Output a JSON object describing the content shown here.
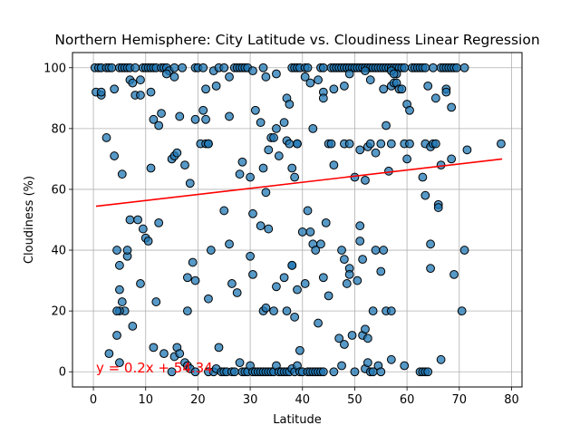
{
  "chart_data": {
    "type": "scatter",
    "title": "Northern Hemisphere: City Latitude vs. Cloudiness Linear Regression",
    "xlabel": "Latitude",
    "ylabel": "Cloudiness (%)",
    "xlim": [
      -4,
      82
    ],
    "ylim": [
      -5,
      105
    ],
    "xticks": [
      0,
      10,
      20,
      30,
      40,
      50,
      60,
      70,
      80
    ],
    "yticks": [
      0,
      20,
      40,
      60,
      80,
      100
    ],
    "grid": true,
    "point_color": "#1f77b4",
    "point_edge_color": "#000000",
    "line_color": "#ff0000",
    "regression": {
      "slope": 0.2,
      "intercept": 54.34,
      "x_range": [
        0.5,
        78.2
      ]
    },
    "annotation": {
      "text": "y = 0.2x + 54.34",
      "x": 0.5,
      "y": 0,
      "color": "#ff0000"
    },
    "points": [
      [
        0.3,
        100
      ],
      [
        1.0,
        100
      ],
      [
        1.5,
        100
      ],
      [
        2.5,
        100
      ],
      [
        3.0,
        100
      ],
      [
        3.5,
        100
      ],
      [
        5.0,
        100
      ],
      [
        5.5,
        100
      ],
      [
        6.0,
        100
      ],
      [
        6.5,
        100
      ],
      [
        7.0,
        100
      ],
      [
        8.0,
        100
      ],
      [
        9.5,
        100
      ],
      [
        10.0,
        100
      ],
      [
        10.5,
        100
      ],
      [
        11.0,
        100
      ],
      [
        11.5,
        100
      ],
      [
        12.0,
        100
      ],
      [
        13.0,
        100
      ],
      [
        13.5,
        100
      ],
      [
        14.0,
        100
      ],
      [
        14.5,
        99
      ],
      [
        15.5,
        100
      ],
      [
        17.0,
        100
      ],
      [
        19.5,
        100
      ],
      [
        20.0,
        100
      ],
      [
        21.0,
        100
      ],
      [
        23.0,
        99
      ],
      [
        24.0,
        100
      ],
      [
        25.0,
        100
      ],
      [
        27.0,
        100
      ],
      [
        27.5,
        100
      ],
      [
        28.0,
        100
      ],
      [
        28.5,
        100
      ],
      [
        29.0,
        100
      ],
      [
        29.5,
        100
      ],
      [
        30.5,
        99
      ],
      [
        32.5,
        100
      ],
      [
        35.0,
        98
      ],
      [
        38.0,
        100
      ],
      [
        38.5,
        100
      ],
      [
        39.0,
        100
      ],
      [
        39.5,
        100
      ],
      [
        40.5,
        100
      ],
      [
        41.0,
        100
      ],
      [
        43.5,
        100
      ],
      [
        44.0,
        100
      ],
      [
        45.5,
        100
      ],
      [
        46.0,
        100
      ],
      [
        46.5,
        100
      ],
      [
        47.0,
        100
      ],
      [
        47.5,
        100
      ],
      [
        48.0,
        100
      ],
      [
        48.5,
        100
      ],
      [
        49.0,
        100
      ],
      [
        49.5,
        100
      ],
      [
        50.0,
        100
      ],
      [
        50.5,
        100
      ],
      [
        51.0,
        100
      ],
      [
        51.5,
        100
      ],
      [
        52.0,
        100
      ],
      [
        52.5,
        100
      ],
      [
        53.0,
        100
      ],
      [
        53.5,
        100
      ],
      [
        54.0,
        100
      ],
      [
        54.5,
        100
      ],
      [
        55.0,
        100
      ],
      [
        55.5,
        100
      ],
      [
        56.0,
        100
      ],
      [
        56.5,
        100
      ],
      [
        57.0,
        100
      ],
      [
        57.5,
        100
      ],
      [
        58.0,
        100
      ],
      [
        58.5,
        100
      ],
      [
        59.0,
        100
      ],
      [
        59.5,
        100
      ],
      [
        61.0,
        100
      ],
      [
        61.5,
        100
      ],
      [
        62.0,
        100
      ],
      [
        62.5,
        100
      ],
      [
        63.0,
        100
      ],
      [
        63.5,
        100
      ],
      [
        65.0,
        100
      ],
      [
        66.5,
        100
      ],
      [
        67.0,
        100
      ],
      [
        67.5,
        100
      ],
      [
        68.0,
        100
      ],
      [
        68.5,
        100
      ],
      [
        69.0,
        100
      ],
      [
        69.5,
        100
      ],
      [
        71.0,
        100
      ],
      [
        0.5,
        92
      ],
      [
        1.5,
        91
      ],
      [
        1.5,
        92
      ],
      [
        4.0,
        93
      ],
      [
        7.0,
        96
      ],
      [
        7.5,
        95
      ],
      [
        8.0,
        91
      ],
      [
        9.0,
        91
      ],
      [
        9.0,
        96
      ],
      [
        11.0,
        92
      ],
      [
        14.0,
        98
      ],
      [
        15.5,
        97
      ],
      [
        21.5,
        93
      ],
      [
        23.5,
        94
      ],
      [
        26.0,
        97
      ],
      [
        33.0,
        97
      ],
      [
        37.0,
        90
      ],
      [
        37.5,
        88
      ],
      [
        40.5,
        97
      ],
      [
        41.5,
        95
      ],
      [
        43.0,
        96
      ],
      [
        44.0,
        92
      ],
      [
        44.0,
        90
      ],
      [
        46.0,
        93
      ],
      [
        48.0,
        94
      ],
      [
        49.0,
        98
      ],
      [
        52.0,
        99
      ],
      [
        53.0,
        96
      ],
      [
        55.5,
        93
      ],
      [
        57.0,
        94
      ],
      [
        57.5,
        95
      ],
      [
        58.0,
        95
      ],
      [
        58.5,
        93
      ],
      [
        59.0,
        93
      ],
      [
        60.0,
        88
      ],
      [
        60.5,
        86
      ],
      [
        64.0,
        94
      ],
      [
        65.5,
        90
      ],
      [
        67.5,
        93
      ],
      [
        67.5,
        92
      ],
      [
        68.5,
        87
      ],
      [
        58.0,
        98
      ],
      [
        57.0,
        99
      ],
      [
        57.5,
        98
      ],
      [
        2.5,
        77
      ],
      [
        4.0,
        71
      ],
      [
        5.5,
        65
      ],
      [
        11.0,
        67
      ],
      [
        11.5,
        83
      ],
      [
        12.5,
        81
      ],
      [
        13.0,
        85
      ],
      [
        15.0,
        70
      ],
      [
        15.5,
        71
      ],
      [
        16.0,
        72
      ],
      [
        16.5,
        84
      ],
      [
        17.5,
        68
      ],
      [
        18.5,
        62
      ],
      [
        19.5,
        83
      ],
      [
        20.5,
        75
      ],
      [
        21.0,
        86
      ],
      [
        21.5,
        75
      ],
      [
        21.5,
        83
      ],
      [
        22.0,
        75
      ],
      [
        22.0,
        75
      ],
      [
        26.0,
        84
      ],
      [
        28.0,
        65
      ],
      [
        28.5,
        69
      ],
      [
        30.0,
        64
      ],
      [
        31.0,
        86
      ],
      [
        32.0,
        82
      ],
      [
        32.5,
        67
      ],
      [
        33.5,
        73
      ],
      [
        34.0,
        77
      ],
      [
        34.5,
        77
      ],
      [
        35.0,
        80
      ],
      [
        35.5,
        71
      ],
      [
        36.5,
        82
      ],
      [
        37.0,
        76
      ],
      [
        37.5,
        75
      ],
      [
        38.0,
        67
      ],
      [
        38.5,
        64
      ],
      [
        39.0,
        75
      ],
      [
        39.0,
        75
      ],
      [
        42.0,
        80
      ],
      [
        45.0,
        75
      ],
      [
        45.5,
        75
      ],
      [
        46.0,
        68
      ],
      [
        48.0,
        75
      ],
      [
        49.0,
        75
      ],
      [
        50.0,
        64
      ],
      [
        51.0,
        73
      ],
      [
        52.0,
        63
      ],
      [
        52.5,
        74
      ],
      [
        53.0,
        75
      ],
      [
        54.0,
        72
      ],
      [
        55.0,
        75
      ],
      [
        56.0,
        81
      ],
      [
        56.5,
        66
      ],
      [
        57.0,
        75
      ],
      [
        59.5,
        75
      ],
      [
        60.0,
        70
      ],
      [
        60.5,
        75
      ],
      [
        63.0,
        64
      ],
      [
        63.5,
        75
      ],
      [
        64.5,
        74
      ],
      [
        65.0,
        75
      ],
      [
        65.5,
        75
      ],
      [
        66.5,
        68
      ],
      [
        68.5,
        70
      ],
      [
        71.5,
        73
      ],
      [
        78.0,
        75
      ],
      [
        7.0,
        50
      ],
      [
        8.5,
        50
      ],
      [
        9.5,
        47
      ],
      [
        10.0,
        44
      ],
      [
        10.5,
        43
      ],
      [
        12.0,
        23
      ],
      [
        12.5,
        49
      ],
      [
        6.5,
        38
      ],
      [
        6.5,
        40
      ],
      [
        5.0,
        35
      ],
      [
        4.5,
        40
      ],
      [
        5.0,
        27
      ],
      [
        5.5,
        23
      ],
      [
        6.0,
        20
      ],
      [
        5.0,
        20
      ],
      [
        4.5,
        20
      ],
      [
        4.5,
        12
      ],
      [
        7.5,
        15
      ],
      [
        9.0,
        29
      ],
      [
        19.0,
        36
      ],
      [
        19.5,
        30
      ],
      [
        18.0,
        31
      ],
      [
        18.0,
        20
      ],
      [
        22.0,
        24
      ],
      [
        22.5,
        40
      ],
      [
        25.0,
        53
      ],
      [
        26.0,
        42
      ],
      [
        26.5,
        29
      ],
      [
        27.5,
        26
      ],
      [
        30.0,
        38
      ],
      [
        30.5,
        52
      ],
      [
        30.5,
        32
      ],
      [
        32.0,
        48
      ],
      [
        32.5,
        20
      ],
      [
        33.0,
        21
      ],
      [
        33.0,
        59
      ],
      [
        33.5,
        47
      ],
      [
        34.5,
        20
      ],
      [
        35.0,
        28
      ],
      [
        36.5,
        31
      ],
      [
        37.0,
        20
      ],
      [
        38.0,
        35
      ],
      [
        38.0,
        35
      ],
      [
        38.5,
        18
      ],
      [
        39.0,
        27
      ],
      [
        39.5,
        7
      ],
      [
        40.0,
        46
      ],
      [
        40.5,
        29
      ],
      [
        41.0,
        53
      ],
      [
        41.5,
        46
      ],
      [
        42.0,
        42
      ],
      [
        42.5,
        40
      ],
      [
        43.0,
        16
      ],
      [
        43.5,
        42
      ],
      [
        44.0,
        31
      ],
      [
        44.5,
        49
      ],
      [
        45.0,
        25
      ],
      [
        47.0,
        11
      ],
      [
        47.5,
        40
      ],
      [
        48.0,
        37
      ],
      [
        48.0,
        9
      ],
      [
        48.5,
        29
      ],
      [
        49.0,
        34
      ],
      [
        49.0,
        32
      ],
      [
        49.5,
        12
      ],
      [
        50.5,
        30
      ],
      [
        51.0,
        43
      ],
      [
        51.0,
        48
      ],
      [
        51.5,
        37
      ],
      [
        51.5,
        12
      ],
      [
        52.0,
        14
      ],
      [
        52.5,
        11
      ],
      [
        53.5,
        20
      ],
      [
        54.0,
        40
      ],
      [
        55.0,
        33
      ],
      [
        55.5,
        40
      ],
      [
        56.0,
        20
      ],
      [
        57.0,
        20
      ],
      [
        63.5,
        58
      ],
      [
        64.5,
        42
      ],
      [
        64.5,
        34
      ],
      [
        66.0,
        55
      ],
      [
        66.0,
        54
      ],
      [
        69.0,
        32
      ],
      [
        70.5,
        20
      ],
      [
        71.0,
        40
      ],
      [
        3.0,
        6
      ],
      [
        5.0,
        3
      ],
      [
        11.5,
        8
      ],
      [
        13.5,
        6
      ],
      [
        15.0,
        0
      ],
      [
        15.5,
        5
      ],
      [
        16.0,
        8
      ],
      [
        16.5,
        6
      ],
      [
        17.5,
        3
      ],
      [
        18.0,
        2
      ],
      [
        18.5,
        1
      ],
      [
        19.5,
        0
      ],
      [
        22.0,
        0
      ],
      [
        23.0,
        0
      ],
      [
        23.5,
        1
      ],
      [
        24.0,
        8
      ],
      [
        24.5,
        0
      ],
      [
        25.0,
        0
      ],
      [
        25.5,
        0
      ],
      [
        26.5,
        0
      ],
      [
        27.0,
        0
      ],
      [
        28.0,
        3
      ],
      [
        28.5,
        0
      ],
      [
        29.0,
        0
      ],
      [
        29.5,
        0
      ],
      [
        30.0,
        2
      ],
      [
        30.5,
        0
      ],
      [
        31.0,
        0
      ],
      [
        31.5,
        0
      ],
      [
        32.0,
        0
      ],
      [
        32.5,
        0
      ],
      [
        33.0,
        0
      ],
      [
        33.5,
        0
      ],
      [
        34.0,
        0
      ],
      [
        34.5,
        0
      ],
      [
        35.0,
        2
      ],
      [
        35.5,
        0
      ],
      [
        36.0,
        0
      ],
      [
        36.5,
        0
      ],
      [
        37.0,
        0
      ],
      [
        37.5,
        0
      ],
      [
        38.0,
        1
      ],
      [
        38.5,
        0
      ],
      [
        39.0,
        2
      ],
      [
        39.5,
        0
      ],
      [
        40.0,
        0
      ],
      [
        41.0,
        0
      ],
      [
        41.5,
        0
      ],
      [
        42.0,
        0
      ],
      [
        42.5,
        0
      ],
      [
        43.0,
        0
      ],
      [
        43.5,
        0
      ],
      [
        44.0,
        0
      ],
      [
        46.0,
        0
      ],
      [
        47.5,
        2
      ],
      [
        50.0,
        0
      ],
      [
        52.0,
        1
      ],
      [
        52.5,
        3
      ],
      [
        53.0,
        0
      ],
      [
        53.5,
        0
      ],
      [
        54.5,
        2
      ],
      [
        55.0,
        0
      ],
      [
        57.0,
        4
      ],
      [
        59.5,
        2
      ],
      [
        62.5,
        0
      ],
      [
        63.0,
        0
      ],
      [
        63.5,
        0
      ],
      [
        64.0,
        0
      ],
      [
        66.5,
        4
      ]
    ]
  }
}
